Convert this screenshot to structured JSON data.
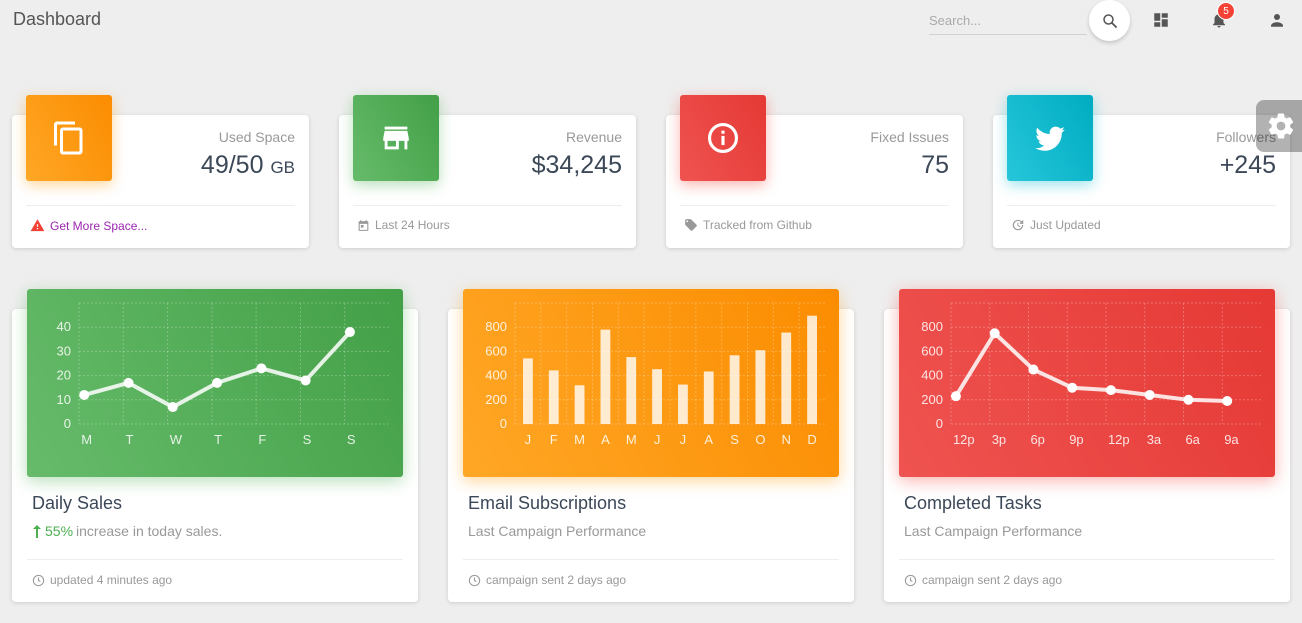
{
  "header": {
    "title": "Dashboard",
    "search_placeholder": "Search...",
    "notification_count": "5"
  },
  "stats": [
    {
      "category": "Used Space",
      "value": "49/50",
      "unit": "GB",
      "footer": "Get More Space...",
      "color": "#ff9800",
      "icon": "copy-icon",
      "footer_icon": "warning-icon"
    },
    {
      "category": "Revenue",
      "value": "$34,245",
      "unit": "",
      "footer": "Last 24 Hours",
      "color": "#4caf50",
      "icon": "store-icon",
      "footer_icon": "calendar-icon"
    },
    {
      "category": "Fixed Issues",
      "value": "75",
      "unit": "",
      "footer": "Tracked from Github",
      "color": "#f44336",
      "icon": "info-icon",
      "footer_icon": "tag-icon"
    },
    {
      "category": "Followers",
      "value": "+245",
      "unit": "",
      "footer": "Just Updated",
      "color": "#00bcd4",
      "icon": "twitter-icon",
      "footer_icon": "update-icon"
    }
  ],
  "charts": [
    {
      "title": "Daily Sales",
      "subtitle_pct": "55%",
      "subtitle_rest": " increase in today sales.",
      "footer": "updated 4 minutes ago",
      "color": "#4caf50"
    },
    {
      "title": "Email Subscriptions",
      "subtitle": "Last Campaign Performance",
      "footer": "campaign sent 2 days ago",
      "color": "#ff9800"
    },
    {
      "title": "Completed Tasks",
      "subtitle": "Last Campaign Performance",
      "footer": "campaign sent 2 days ago",
      "color": "#f44336"
    }
  ],
  "chart_data": [
    {
      "type": "line",
      "categories": [
        "M",
        "T",
        "W",
        "T",
        "F",
        "S",
        "S"
      ],
      "values": [
        12,
        17,
        7,
        17,
        23,
        18,
        38
      ],
      "ylim": [
        0,
        50
      ],
      "yticks": [
        0,
        10,
        20,
        30,
        40
      ],
      "grid": true
    },
    {
      "type": "bar",
      "categories": [
        "J",
        "F",
        "M",
        "A",
        "M",
        "J",
        "J",
        "A",
        "S",
        "O",
        "N",
        "D"
      ],
      "values": [
        542,
        443,
        320,
        780,
        553,
        453,
        326,
        434,
        568,
        610,
        756,
        895
      ],
      "ylim": [
        0,
        1000
      ],
      "yticks": [
        0,
        200,
        400,
        600,
        800
      ],
      "grid": true
    },
    {
      "type": "line",
      "categories": [
        "12p",
        "3p",
        "6p",
        "9p",
        "12p",
        "3a",
        "6a",
        "9a"
      ],
      "values": [
        230,
        750,
        450,
        300,
        280,
        240,
        200,
        190
      ],
      "ylim": [
        0,
        1000
      ],
      "yticks": [
        0,
        200,
        400,
        600,
        800
      ],
      "grid": true
    }
  ]
}
